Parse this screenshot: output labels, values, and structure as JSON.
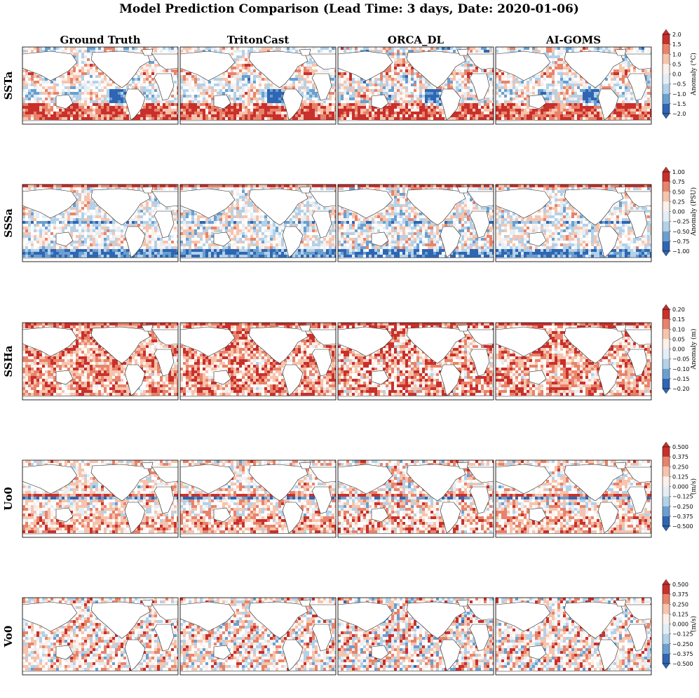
{
  "figure": {
    "title": "Model Prediction Comparison (Lead Time: 3 days, Date: 2020-01-06)"
  },
  "chart_data": {
    "type": "heatmap",
    "title": "Model Prediction Comparison (Lead Time: 3 days, Date: 2020-01-06)",
    "columns": [
      "Ground Truth",
      "TritonCast",
      "ORCA_DL",
      "AI-GOMS"
    ],
    "rows": [
      {
        "variable": "SSTa",
        "colorbar_label": "Anomaly (°C)",
        "range": [
          -2.0,
          2.0
        ],
        "ticks": [
          "2.0",
          "1.5",
          "1.0",
          "0.5",
          "0.0",
          "−0.5",
          "−1.0",
          "−1.5",
          "−2.0"
        ]
      },
      {
        "variable": "SSSa",
        "colorbar_label": "Anomaly (PSU)",
        "range": [
          -1.0,
          1.0
        ],
        "ticks": [
          "1.00",
          "0.75",
          "0.50",
          "0.25",
          "0.00",
          "−0.25",
          "−0.50",
          "−0.75",
          "−1.00"
        ]
      },
      {
        "variable": "SSHa",
        "colorbar_label": "Anomaly (m)",
        "range": [
          -0.2,
          0.2
        ],
        "ticks": [
          "0.20",
          "0.15",
          "0.10",
          "0.05",
          "0.00",
          "−0.05",
          "−0.10",
          "−0.15",
          "−0.20"
        ]
      },
      {
        "variable": "Uo0",
        "colorbar_label": "(m/s)",
        "range": [
          -0.5,
          0.5
        ],
        "ticks": [
          "0.500",
          "0.375",
          "0.250",
          "0.125",
          "0.000",
          "−0.125",
          "−0.250",
          "−0.375",
          "−0.500"
        ]
      },
      {
        "variable": "Vo0",
        "colorbar_label": "(m/s)",
        "range": [
          -0.5,
          0.5
        ],
        "ticks": [
          "0.500",
          "0.375",
          "0.250",
          "0.125",
          "0.000",
          "−0.125",
          "−0.250",
          "−0.375",
          "−0.500"
        ]
      }
    ],
    "colormap": [
      "#2f66b3",
      "#6a9fd0",
      "#b3d1e8",
      "#e4eef6",
      "#fdf0ea",
      "#f6c4ad",
      "#e8836a",
      "#c9302c"
    ]
  }
}
